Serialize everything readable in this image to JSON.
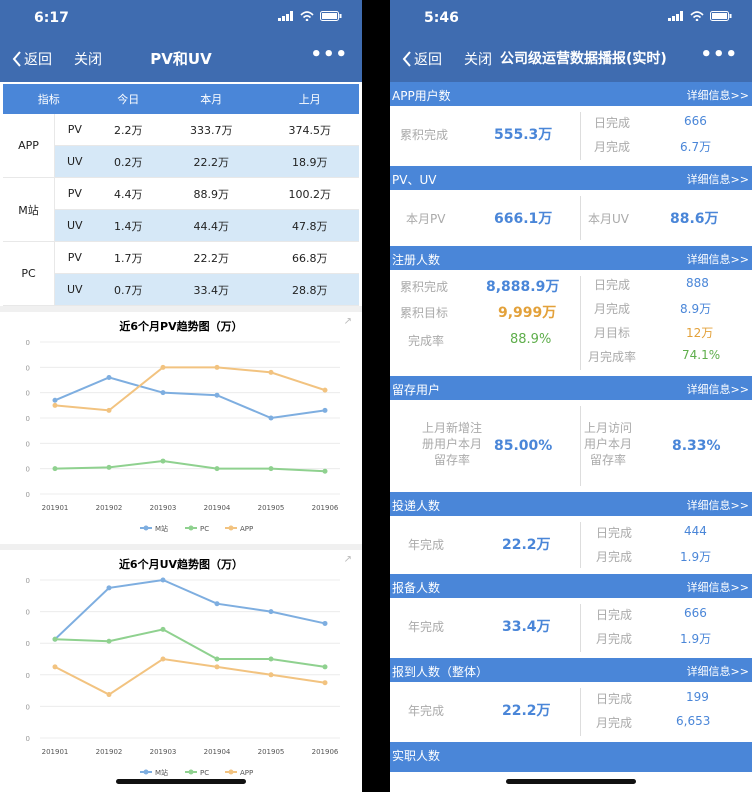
{
  "left": {
    "status": {
      "time": "6:17"
    },
    "nav": {
      "back": "返回",
      "close": "关闭",
      "title": "PV和UV",
      "more": "•••"
    },
    "table": {
      "headers": [
        "指标",
        "今日",
        "本月",
        "上月"
      ],
      "groups": [
        {
          "name": "APP",
          "rows": [
            [
              "PV",
              "2.2万",
              "333.7万",
              "374.5万"
            ],
            [
              "UV",
              "0.2万",
              "22.2万",
              "18.9万"
            ]
          ]
        },
        {
          "name": "M站",
          "rows": [
            [
              "PV",
              "4.4万",
              "88.9万",
              "100.2万"
            ],
            [
              "UV",
              "1.4万",
              "44.4万",
              "47.8万"
            ]
          ]
        },
        {
          "name": "PC",
          "rows": [
            [
              "PV",
              "1.7万",
              "22.2万",
              "66.8万"
            ],
            [
              "UV",
              "0.7万",
              "33.4万",
              "28.8万"
            ]
          ]
        }
      ]
    },
    "charts": [
      {
        "title": "近6个月PV趋势图（万）",
        "y_ticks": [
          "0",
          "0",
          "0",
          "0",
          "0",
          "0",
          "0"
        ],
        "x_ticks": [
          "201901",
          "201902",
          "201903",
          "201904",
          "201905",
          "201906"
        ],
        "legend": [
          "M站",
          "PC",
          "APP"
        ]
      },
      {
        "title": "近6个月UV趋势图（万）",
        "y_ticks": [
          "0",
          "0",
          "0",
          "0",
          "0",
          "0"
        ],
        "x_ticks": [
          "201901",
          "201902",
          "201903",
          "201904",
          "201905",
          "201906"
        ],
        "legend": [
          "M站",
          "PC",
          "APP"
        ]
      }
    ]
  },
  "chart_data": [
    {
      "type": "line",
      "title": "近6个月PV趋势图（万）",
      "categories": [
        "201901",
        "201902",
        "201903",
        "201904",
        "201905",
        "201906"
      ],
      "series": [
        {
          "name": "M站",
          "values": [
            2.7,
            3.6,
            3.0,
            2.9,
            2.0,
            2.3
          ]
        },
        {
          "name": "PC",
          "values": [
            0.0,
            0.05,
            0.3,
            0.0,
            0.0,
            -0.1
          ]
        },
        {
          "name": "APP",
          "values": [
            2.5,
            2.3,
            4.0,
            4.0,
            3.8,
            3.1
          ]
        }
      ],
      "ylim": [
        -1,
        5
      ],
      "colors": [
        "#7eaee0",
        "#8fd18f",
        "#f2c380"
      ]
    },
    {
      "type": "line",
      "title": "近6个月UV趋势图（万）",
      "categories": [
        "201901",
        "201902",
        "201903",
        "201904",
        "201905",
        "201906"
      ],
      "series": [
        {
          "name": "M站",
          "values": [
            0.5,
            1.8,
            2.0,
            1.4,
            1.2,
            0.9
          ]
        },
        {
          "name": "PC",
          "values": [
            0.5,
            0.45,
            0.75,
            0.0,
            0.0,
            -0.2
          ]
        },
        {
          "name": "APP",
          "values": [
            -0.2,
            -0.9,
            0.0,
            -0.2,
            -0.4,
            -0.6
          ]
        }
      ],
      "ylim": [
        -2,
        2
      ],
      "colors": [
        "#7eaee0",
        "#8fd18f",
        "#f2c380"
      ]
    }
  ],
  "right": {
    "status": {
      "time": "5:46"
    },
    "nav": {
      "back": "返回",
      "close": "关闭",
      "title": "公司级运营数据播报(实时)",
      "more": "•••"
    },
    "detail": "详细信息>>",
    "sections": {
      "app_users": {
        "title": "APP用户数",
        "label": "累积完成",
        "value": "555.3万",
        "r1_label": "日完成",
        "r1_value": "666",
        "r2_label": "月完成",
        "r2_value": "6.7万"
      },
      "pvuv": {
        "title": "PV、UV",
        "label": "本月PV",
        "value": "666.1万",
        "r_label": "本月UV",
        "r_value": "88.6万"
      },
      "register": {
        "title": "注册人数",
        "l1": "累积完成",
        "v1": "8,888.9万",
        "l2": "累积目标",
        "v2": "9,999万",
        "l3": "完成率",
        "v3": "88.9%",
        "r1": "日完成",
        "rv1": "888",
        "r2": "月完成",
        "rv2": "8.9万",
        "r3": "月目标",
        "rv3": "12万",
        "r4": "月完成率",
        "rv4": "74.1%"
      },
      "retain": {
        "title": "留存用户",
        "l_text": "上月新增注\n册用户本月\n留存率",
        "l_value": "85.00%",
        "r_text": "上月访问\n用户本月\n留存率",
        "r_value": "8.33%"
      },
      "submit": {
        "title": "投递人数",
        "label": "年完成",
        "value": "22.2万",
        "r1": "日完成",
        "rv1": "444",
        "r2": "月完成",
        "rv2": "1.9万"
      },
      "prepare": {
        "title": "报备人数",
        "label": "年完成",
        "value": "33.4万",
        "r1": "日完成",
        "rv1": "666",
        "r2": "月完成",
        "rv2": "1.9万"
      },
      "arrive": {
        "title": "报到人数（整体）",
        "label": "年完成",
        "value": "22.2万",
        "r1": "日完成",
        "rv1": "199",
        "r2": "月完成",
        "rv2": "6,653"
      }
    },
    "cut_title": "实职人数"
  },
  "colors": {
    "nav": "#3f6cb0",
    "header": "#4a86d8",
    "row_alt": "#d6e8f7",
    "orange": "#e3a13a",
    "green": "#5fae4c"
  }
}
